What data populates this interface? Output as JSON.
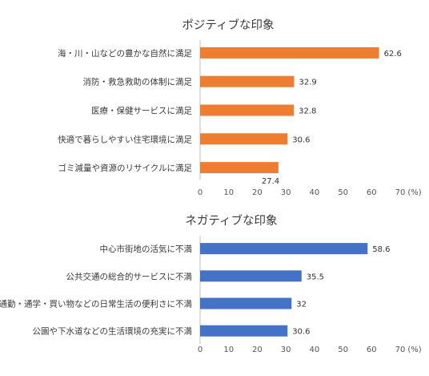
{
  "chart_data": [
    {
      "type": "bar",
      "orientation": "horizontal",
      "title": "ポジティブな印象",
      "categories": [
        "海・川・山などの豊かな自然に満足",
        "消防・救急救助の体制に満足",
        "医療・保健サービスに満足",
        "快適で暮らしやすい住宅環境に満足",
        "ゴミ減量や資源のリサイクルに満足"
      ],
      "values": [
        62.6,
        32.9,
        32.8,
        30.6,
        27.4
      ],
      "value_labels": [
        "62.6",
        "32.9",
        "32.8",
        "30.6",
        "27.4"
      ],
      "xlim": [
        0,
        70
      ],
      "ticks": [
        "0",
        "10",
        "20",
        "30",
        "40",
        "50",
        "60",
        "70"
      ],
      "unit": "(%)",
      "color": "#ED7D31",
      "grid": false,
      "legend": "none"
    },
    {
      "type": "bar",
      "orientation": "horizontal",
      "title": "ネガティブな印象",
      "categories": [
        "中心市街地の活気に不満",
        "公共交通の総合的サービスに不満",
        "通勤・通学・買い物などの日常生活の便利さに不満",
        "公園や下水道などの生活環境の充実に不満"
      ],
      "values": [
        58.6,
        35.5,
        32,
        30.6
      ],
      "value_labels": [
        "58.6",
        "35.5",
        "32",
        "30.6"
      ],
      "xlim": [
        0,
        70
      ],
      "ticks": [
        "0",
        "10",
        "20",
        "30",
        "40",
        "50",
        "60",
        "70"
      ],
      "unit": "(%)",
      "color": "#4472C4",
      "grid": false,
      "legend": "none"
    }
  ]
}
